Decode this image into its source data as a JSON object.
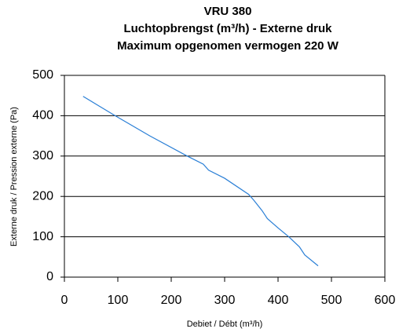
{
  "chart_data": {
    "type": "line",
    "title": [
      "VRU 380",
      "Luchtopbrengst (m³/h) - Externe druk",
      "Maximum opgenomen vermogen 220 W"
    ],
    "x_label": "Debiet / Débt (m³/h)",
    "y_label": "Externe druk / Pression externe (Pa)",
    "series": [
      {
        "name": "VRU 380",
        "color": "#2a7fd6",
        "x": [
          35,
          95,
          160,
          230,
          260,
          270,
          300,
          345,
          355,
          370,
          380,
          400,
          420,
          440,
          450,
          475
        ],
        "values": [
          448,
          400,
          350,
          300,
          280,
          265,
          245,
          205,
          190,
          165,
          145,
          122,
          100,
          75,
          55,
          28
        ]
      }
    ],
    "xlim": [
      0,
      600
    ],
    "xticks": [
      0,
      100,
      200,
      300,
      400,
      500,
      600
    ],
    "ylim": [
      0,
      500
    ],
    "yticks": [
      0,
      100,
      200,
      300,
      400,
      500
    ],
    "grid": true
  }
}
